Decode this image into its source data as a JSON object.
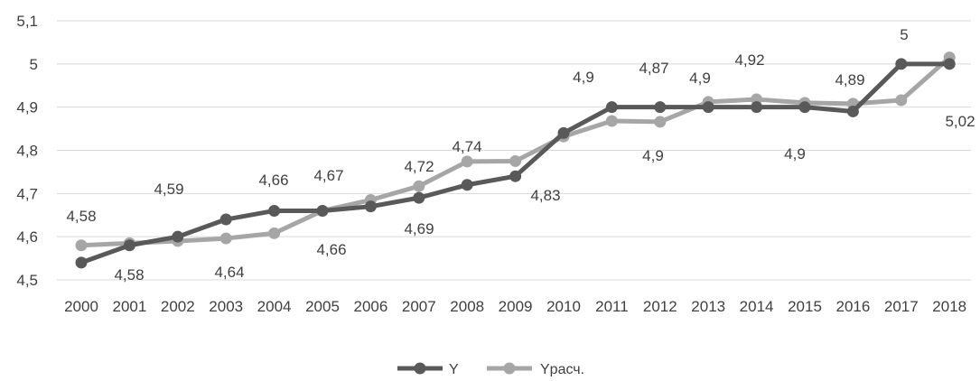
{
  "chart_data": {
    "type": "line",
    "categories": [
      "2000",
      "2001",
      "2002",
      "2003",
      "2004",
      "2005",
      "2006",
      "2007",
      "2008",
      "2009",
      "2010",
      "2011",
      "2012",
      "2013",
      "2014",
      "2015",
      "2016",
      "2017",
      "2018"
    ],
    "y_ticks": [
      "4,5",
      "4,6",
      "4,7",
      "4,8",
      "4,9",
      "5",
      "5,1"
    ],
    "ylim": [
      4.5,
      5.1
    ],
    "grid": true,
    "legend_position": "bottom",
    "series": [
      {
        "name": "Y",
        "color": "#595959",
        "values": [
          4.54,
          4.58,
          4.6,
          4.64,
          4.66,
          4.66,
          4.67,
          4.69,
          4.72,
          4.74,
          4.84,
          4.9,
          4.9,
          4.9,
          4.9,
          4.9,
          4.89,
          5.0,
          5.0
        ]
      },
      {
        "name": "Yрасч.",
        "color": "#a6a6a6",
        "values": [
          4.58,
          4.585,
          4.59,
          4.596,
          4.608,
          4.66,
          4.685,
          4.717,
          4.774,
          4.775,
          4.832,
          4.868,
          4.866,
          4.912,
          4.918,
          4.91,
          4.908,
          4.916,
          5.015
        ]
      }
    ],
    "data_labels": [
      {
        "text": "4,58",
        "near": "2000"
      },
      {
        "text": "4,58",
        "near": "2001"
      },
      {
        "text": "4,59",
        "near": "2002"
      },
      {
        "text": "4,64",
        "near": "2003"
      },
      {
        "text": "4,66",
        "near": "2004"
      },
      {
        "text": "4,67",
        "near": "2005"
      },
      {
        "text": "4,66",
        "near": "2005"
      },
      {
        "text": "4,72",
        "near": "2007"
      },
      {
        "text": "4,69",
        "near": "2007"
      },
      {
        "text": "4,74",
        "near": "2009"
      },
      {
        "text": "4,83",
        "near": "2009"
      },
      {
        "text": "4,9",
        "near": "2010"
      },
      {
        "text": "4,87",
        "near": "2012"
      },
      {
        "text": "4,9",
        "near": "2012"
      },
      {
        "text": "4,9",
        "near": "2013"
      },
      {
        "text": "4,92",
        "near": "2014"
      },
      {
        "text": "4,9",
        "near": "2015"
      },
      {
        "text": "4,89",
        "near": "2016"
      },
      {
        "text": "5",
        "near": "2017"
      },
      {
        "text": "5,02",
        "near": "2018"
      }
    ]
  }
}
